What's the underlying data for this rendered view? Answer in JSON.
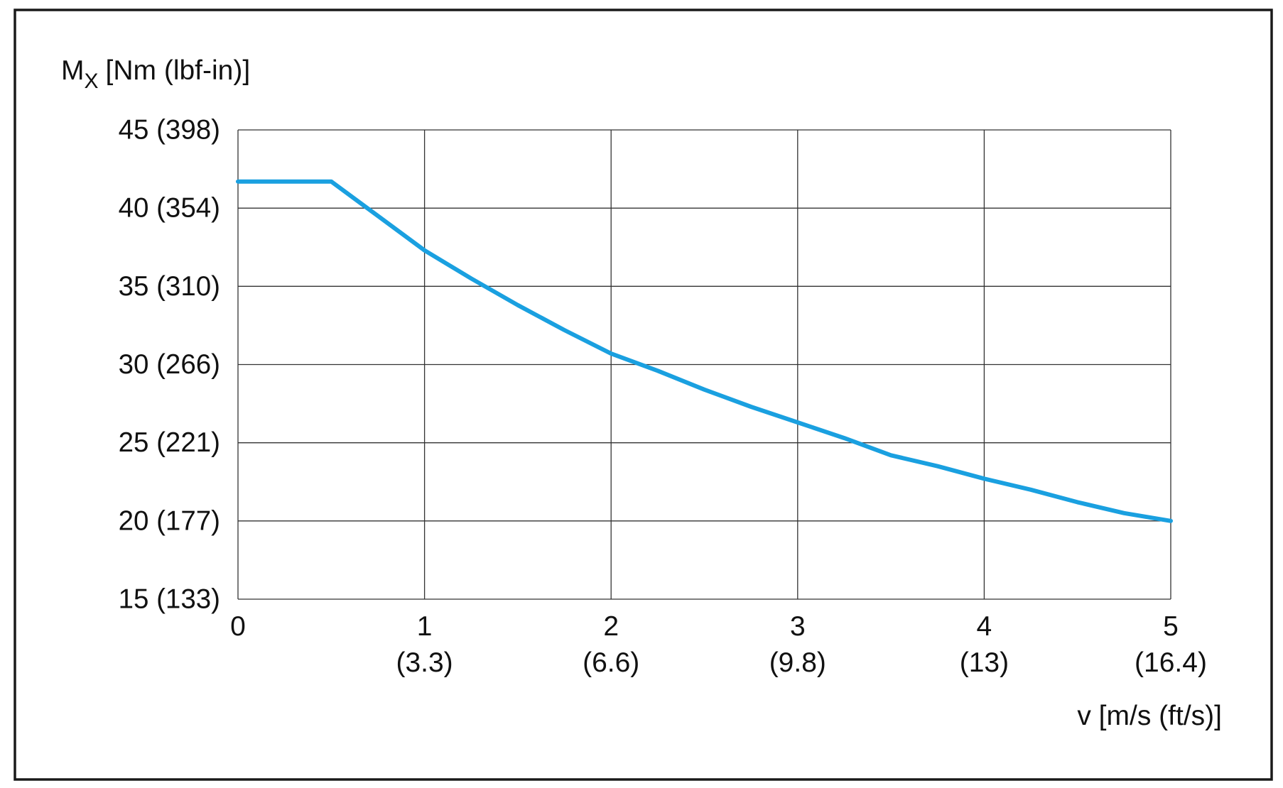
{
  "chart_data": {
    "type": "line",
    "ylabel": {
      "symbol": "M",
      "subscript": "X",
      "unit": "[Nm (lbf-in)]"
    },
    "xlabel": "v [m/s (ft/s)]",
    "xlim": [
      0,
      5
    ],
    "ylim": [
      15,
      45
    ],
    "grid": true,
    "x_ticks": [
      {
        "value": 0,
        "label": "0",
        "sublabel": ""
      },
      {
        "value": 1,
        "label": "1",
        "sublabel": "(3.3)"
      },
      {
        "value": 2,
        "label": "2",
        "sublabel": "(6.6)"
      },
      {
        "value": 3,
        "label": "3",
        "sublabel": "(9.8)"
      },
      {
        "value": 4,
        "label": "4",
        "sublabel": "(13)"
      },
      {
        "value": 5,
        "label": "5",
        "sublabel": "(16.4)"
      }
    ],
    "y_ticks": [
      {
        "value": 45,
        "label": "45 (398)"
      },
      {
        "value": 40,
        "label": "40 (354)"
      },
      {
        "value": 35,
        "label": "35 (310)"
      },
      {
        "value": 30,
        "label": "30 (266)"
      },
      {
        "value": 25,
        "label": "25 (221)"
      },
      {
        "value": 20,
        "label": "20 (177)"
      },
      {
        "value": 15,
        "label": "15 (133)"
      }
    ],
    "series": [
      {
        "color": "#1aa0e0",
        "points": [
          [
            0,
            41.7
          ],
          [
            0.5,
            41.7
          ],
          [
            0.75,
            39.5
          ],
          [
            1.0,
            37.3
          ],
          [
            1.25,
            35.5
          ],
          [
            1.5,
            33.8
          ],
          [
            1.75,
            32.2
          ],
          [
            2.0,
            30.7
          ],
          [
            2.25,
            29.6
          ],
          [
            2.5,
            28.4
          ],
          [
            2.75,
            27.3
          ],
          [
            3.0,
            26.3
          ],
          [
            3.25,
            25.3
          ],
          [
            3.5,
            24.2
          ],
          [
            3.75,
            23.5
          ],
          [
            4.0,
            22.7
          ],
          [
            4.25,
            22.0
          ],
          [
            4.5,
            21.2
          ],
          [
            4.75,
            20.5
          ],
          [
            5.0,
            20.0
          ]
        ]
      }
    ]
  }
}
